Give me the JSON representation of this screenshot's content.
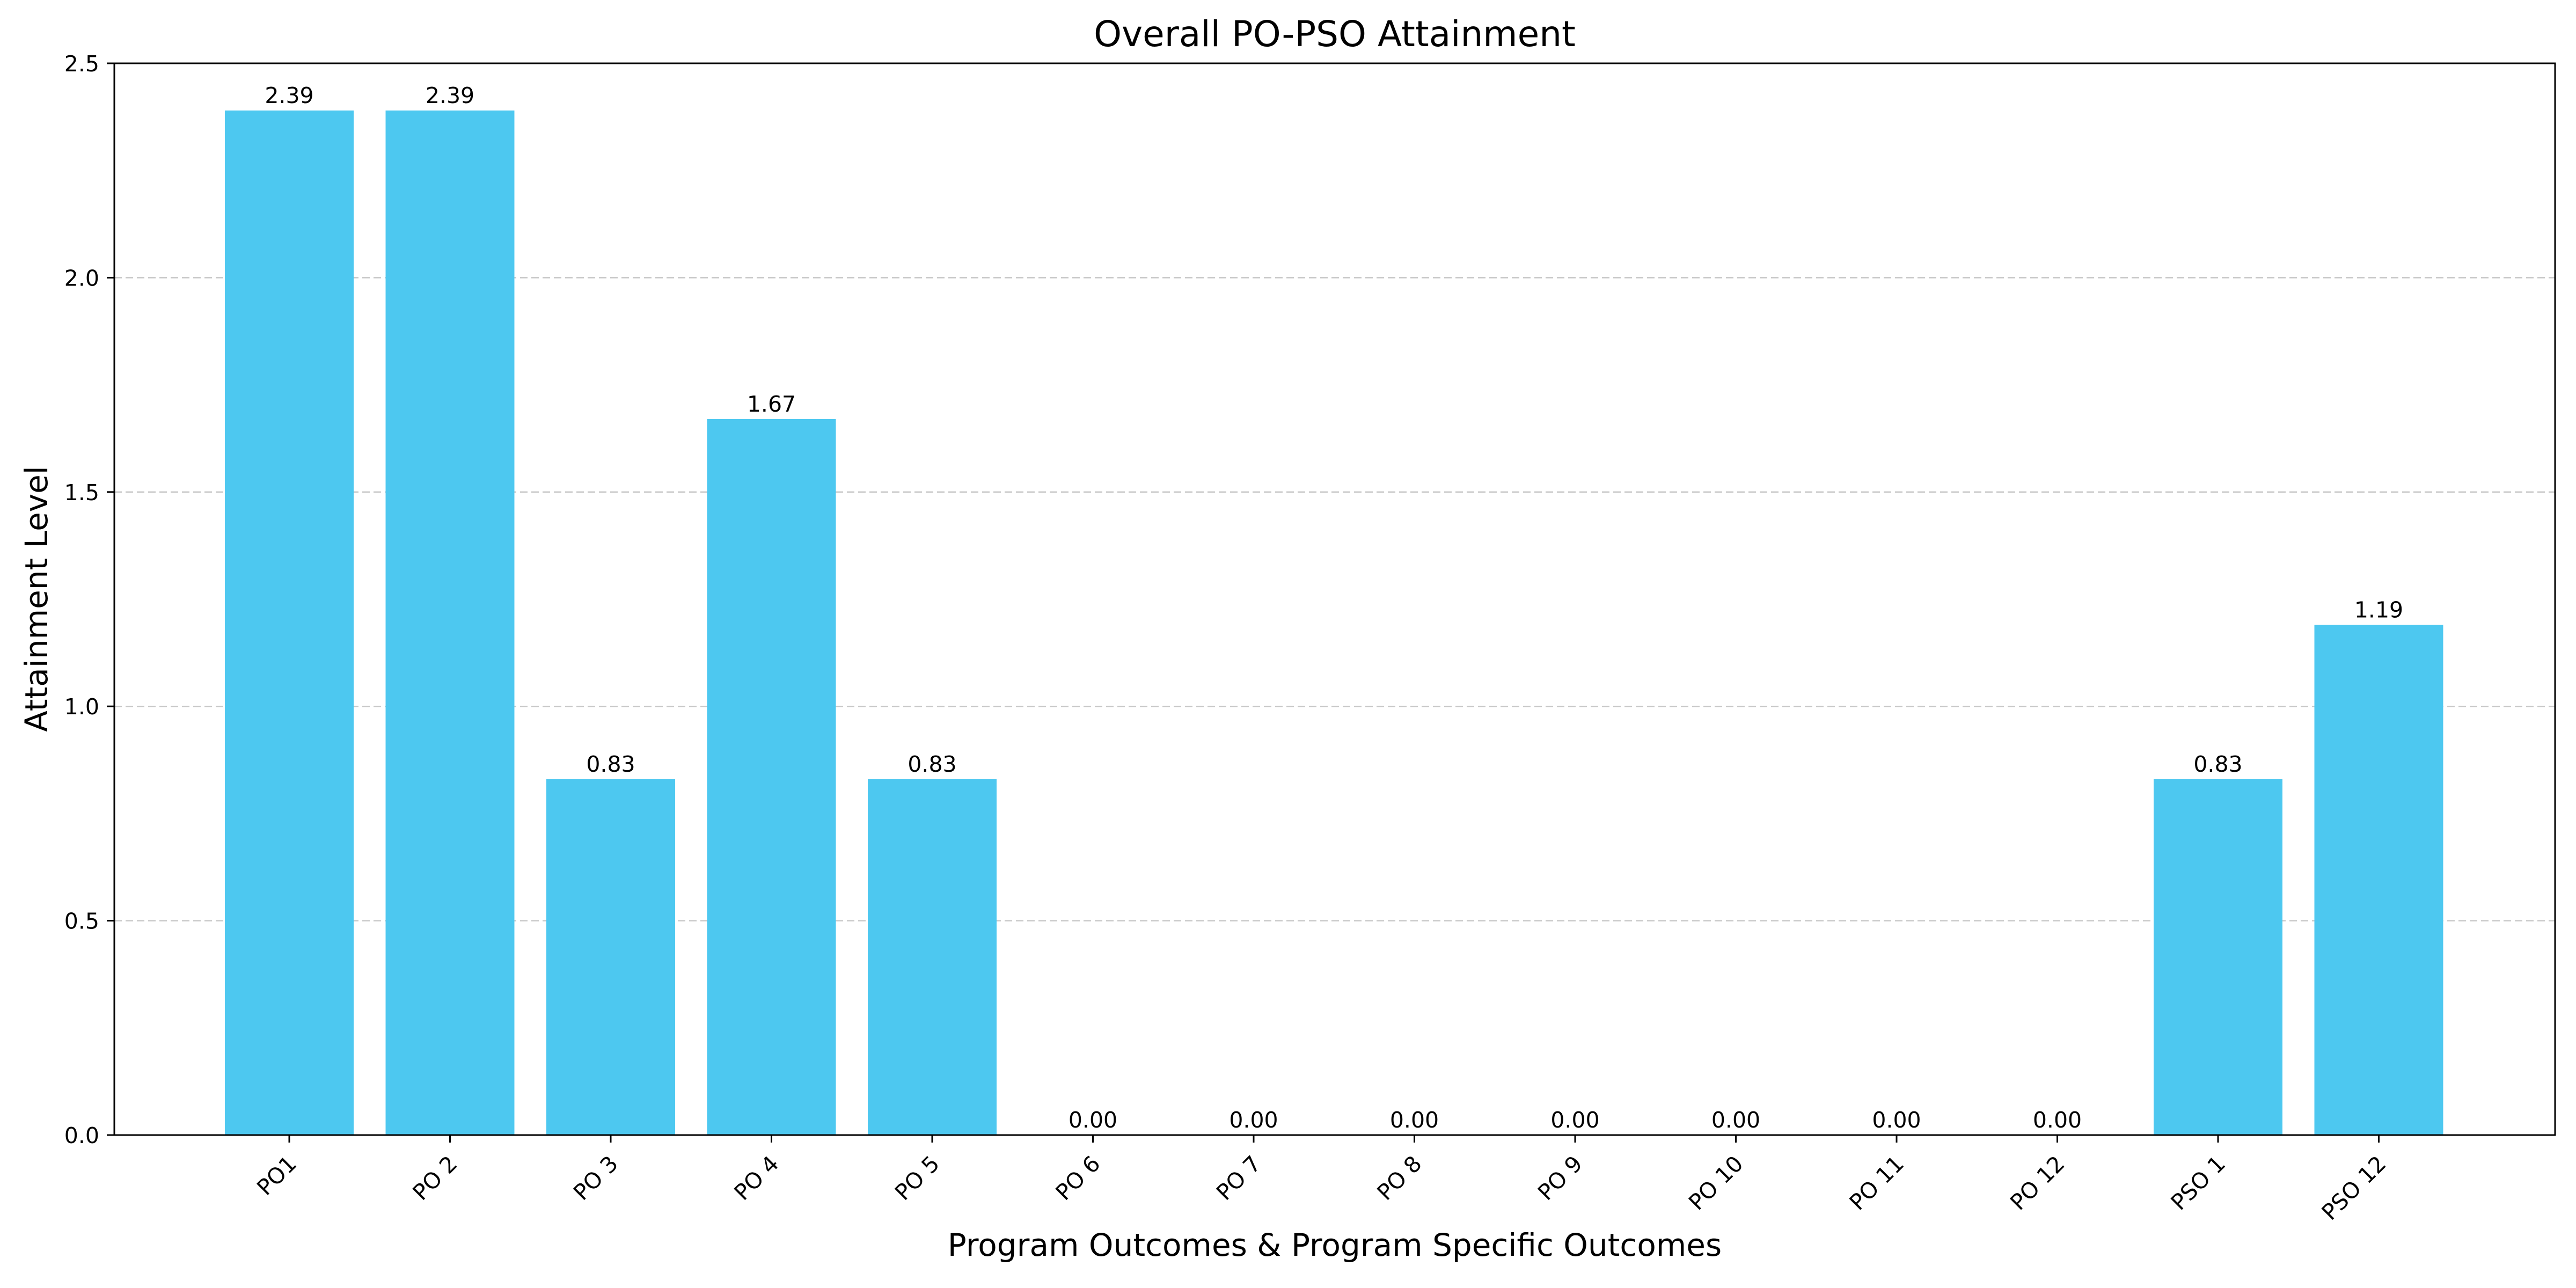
{
  "chart_data": {
    "type": "bar",
    "title": "Overall PO-PSO Attainment",
    "xlabel": "Program Outcomes & Program Specific Outcomes",
    "ylabel": "Attainment Level",
    "categories": [
      "PO1",
      "PO 2",
      "PO 3",
      "PO 4",
      "PO 5",
      "PO 6",
      "PO 7",
      "PO 8",
      "PO 9",
      "PO 10",
      "PO 11",
      "PO 12",
      "PSO 1",
      "PSO 12"
    ],
    "values": [
      2.39,
      2.39,
      0.83,
      1.67,
      0.83,
      0.0,
      0.0,
      0.0,
      0.0,
      0.0,
      0.0,
      0.0,
      0.83,
      1.19
    ],
    "data_labels": [
      "2.39",
      "2.39",
      "0.83",
      "1.67",
      "0.83",
      "0.00",
      "0.00",
      "0.00",
      "0.00",
      "0.00",
      "0.00",
      "0.00",
      "0.83",
      "1.19"
    ],
    "ylim": [
      0,
      2.5
    ],
    "yticks": [
      0.0,
      0.5,
      1.0,
      1.5,
      2.0,
      2.5
    ],
    "ytick_labels": [
      "0.0",
      "0.5",
      "1.0",
      "1.5",
      "2.0",
      "2.5"
    ],
    "grid": "horizontal dashed",
    "x_tick_rotation": "45 degrees",
    "colors": {
      "bar": "#4dc8f0",
      "grid": "#c8c8c8",
      "axis": "#000000",
      "text": "#000000"
    }
  }
}
